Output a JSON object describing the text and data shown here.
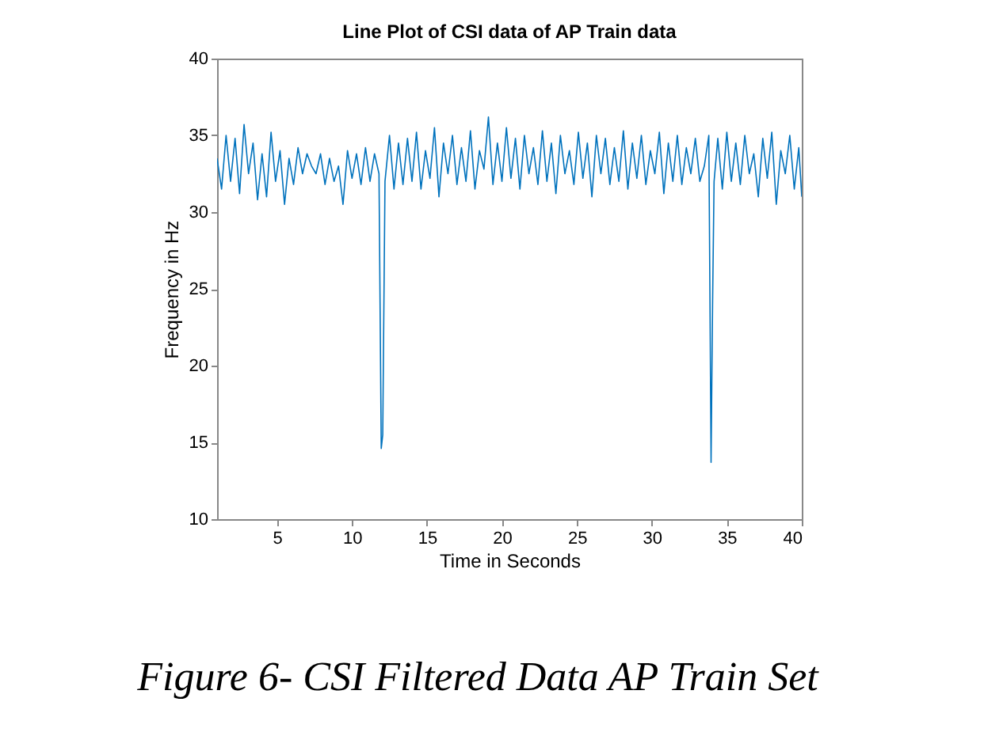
{
  "chart_data": {
    "type": "line",
    "title": "Line Plot of CSI data of AP Train data",
    "xlabel": "Time in Seconds",
    "ylabel": "Frequency in Hz",
    "x": [
      1.0,
      1.3,
      1.6,
      1.9,
      2.2,
      2.5,
      2.8,
      3.1,
      3.4,
      3.7,
      4.0,
      4.3,
      4.6,
      4.9,
      5.2,
      5.5,
      5.8,
      6.1,
      6.4,
      6.7,
      7.0,
      7.3,
      7.6,
      7.9,
      8.2,
      8.5,
      8.8,
      9.1,
      9.4,
      9.7,
      10.0,
      10.3,
      10.6,
      10.9,
      11.2,
      11.5,
      11.8,
      11.95,
      12.05,
      12.2,
      12.5,
      12.8,
      13.1,
      13.4,
      13.7,
      14.0,
      14.3,
      14.6,
      14.9,
      15.2,
      15.5,
      15.8,
      16.1,
      16.4,
      16.7,
      17.0,
      17.3,
      17.6,
      17.9,
      18.2,
      18.5,
      18.8,
      19.1,
      19.4,
      19.7,
      20.0,
      20.3,
      20.6,
      20.9,
      21.2,
      21.5,
      21.8,
      22.1,
      22.4,
      22.7,
      23.0,
      23.3,
      23.6,
      23.9,
      24.2,
      24.5,
      24.8,
      25.1,
      25.4,
      25.7,
      26.0,
      26.3,
      26.6,
      26.9,
      27.2,
      27.5,
      27.8,
      28.1,
      28.4,
      28.7,
      29.0,
      29.3,
      29.6,
      29.9,
      30.2,
      30.5,
      30.8,
      31.1,
      31.4,
      31.7,
      32.0,
      32.3,
      32.6,
      32.9,
      33.2,
      33.5,
      33.8,
      33.95,
      34.05,
      34.15,
      34.4,
      34.7,
      35.0,
      35.3,
      35.6,
      35.9,
      36.2,
      36.5,
      36.8,
      37.1,
      37.4,
      37.7,
      38.0,
      38.3,
      38.6,
      38.9,
      39.2,
      39.5,
      39.8,
      40.0
    ],
    "series": [
      {
        "color": "#0072bd",
        "values": [
          33.5,
          31.5,
          35.0,
          32.0,
          34.8,
          31.2,
          35.7,
          32.5,
          34.5,
          30.8,
          33.8,
          31.0,
          35.2,
          32.0,
          34.0,
          30.5,
          33.5,
          31.8,
          34.2,
          32.5,
          33.8,
          33.0,
          32.5,
          33.8,
          31.8,
          33.5,
          32.0,
          33.0,
          30.5,
          34.0,
          32.2,
          33.8,
          31.8,
          34.2,
          32.0,
          33.8,
          32.5,
          14.6,
          15.5,
          32.0,
          35.0,
          31.5,
          34.5,
          31.8,
          34.8,
          32.0,
          35.2,
          31.5,
          34.0,
          32.2,
          35.5,
          31.0,
          34.5,
          32.5,
          35.0,
          31.8,
          34.2,
          32.0,
          35.3,
          31.5,
          34.0,
          32.8,
          36.2,
          31.8,
          34.5,
          32.0,
          35.5,
          32.2,
          34.8,
          31.5,
          35.0,
          32.5,
          34.2,
          31.8,
          35.3,
          32.0,
          34.5,
          31.2,
          35.0,
          32.5,
          34.0,
          31.8,
          35.2,
          32.2,
          34.5,
          31.0,
          35.0,
          32.5,
          34.8,
          31.8,
          34.2,
          32.0,
          35.3,
          31.5,
          34.5,
          32.2,
          35.0,
          31.8,
          34.0,
          32.5,
          35.2,
          31.2,
          34.5,
          32.0,
          35.0,
          31.8,
          34.2,
          32.5,
          34.8,
          32.0,
          33.0,
          35.0,
          13.7,
          24.0,
          32.0,
          34.8,
          31.5,
          35.2,
          32.0,
          34.5,
          31.8,
          35.0,
          32.5,
          33.8,
          31.0,
          34.8,
          32.2,
          35.2,
          30.5,
          34.0,
          32.5,
          35.0,
          31.5,
          34.2,
          31.0
        ]
      }
    ],
    "xlim": [
      1,
      40
    ],
    "ylim": [
      10,
      40
    ],
    "xticks": [
      5,
      10,
      15,
      20,
      25,
      30,
      35,
      40
    ],
    "yticks": [
      10,
      15,
      20,
      25,
      30,
      35,
      40
    ],
    "annotations": [
      "Figure 6- CSI Filtered Data AP Train Set"
    ]
  }
}
